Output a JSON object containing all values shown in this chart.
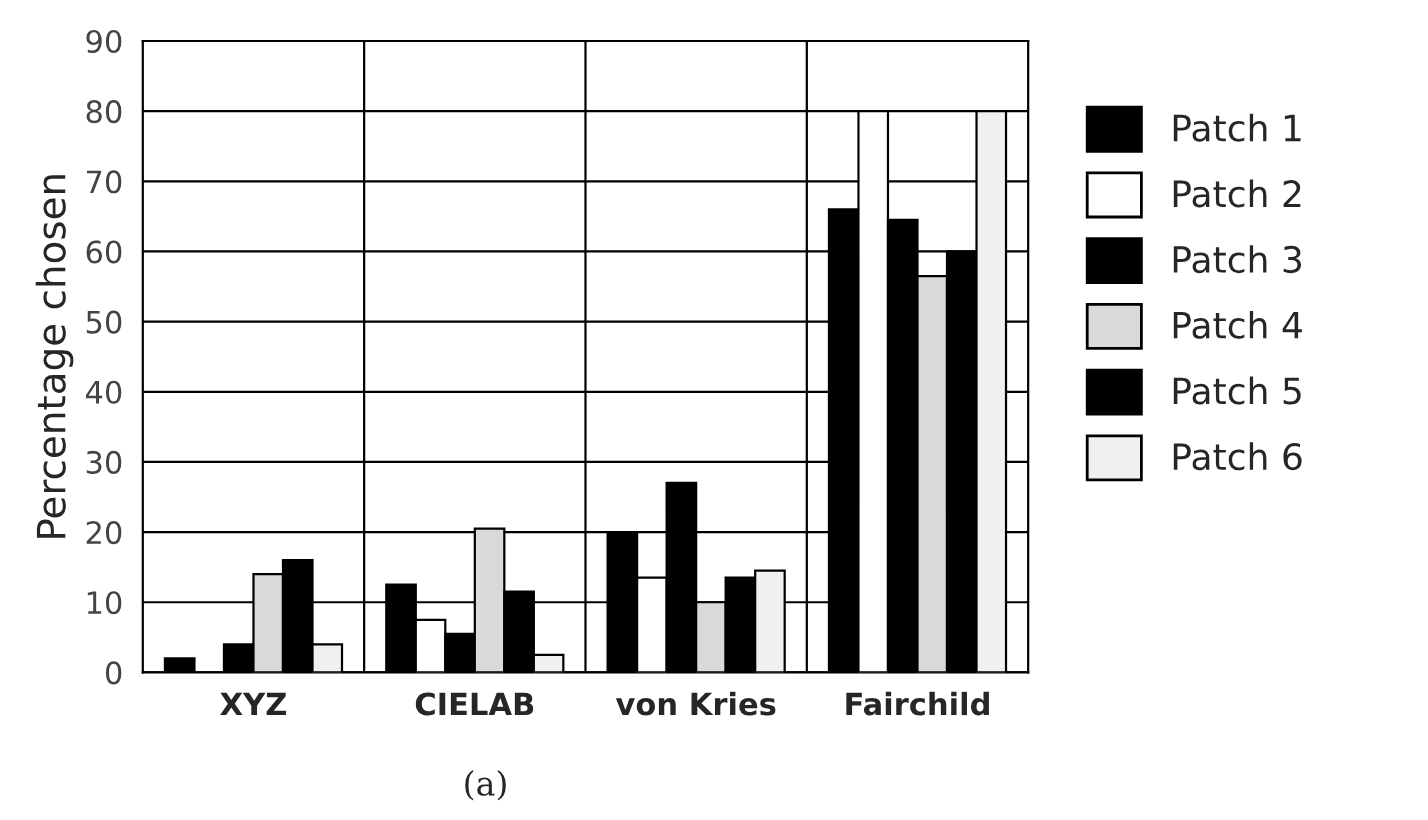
{
  "chart_data": {
    "type": "bar",
    "categories": [
      "XYZ",
      "CIELAB",
      "von Kries",
      "Fairchild"
    ],
    "series": [
      {
        "name": "Patch 1",
        "color": "#000000",
        "values": [
          2,
          12.5,
          20,
          66
        ]
      },
      {
        "name": "Patch 2",
        "color": "#ffffff",
        "values": [
          null,
          7.5,
          13.5,
          80
        ]
      },
      {
        "name": "Patch 3",
        "color": "#000000",
        "values": [
          4,
          5.5,
          27,
          64.5
        ]
      },
      {
        "name": "Patch 4",
        "color": "#d9d9d9",
        "values": [
          14,
          20.5,
          10,
          56.5
        ]
      },
      {
        "name": "Patch 5",
        "color": "#000000",
        "values": [
          16,
          11.5,
          13.5,
          60
        ]
      },
      {
        "name": "Patch 6",
        "color": "#f0f0f0",
        "values": [
          4,
          2.5,
          14.5,
          80
        ]
      }
    ],
    "ylabel": "Percentage chosen",
    "ylim": [
      0,
      90
    ],
    "yticks": [
      0,
      10,
      20,
      30,
      40,
      50,
      60,
      70,
      80,
      90
    ],
    "grid": "y",
    "legend": "right",
    "annotations": [
      "(a)"
    ]
  }
}
